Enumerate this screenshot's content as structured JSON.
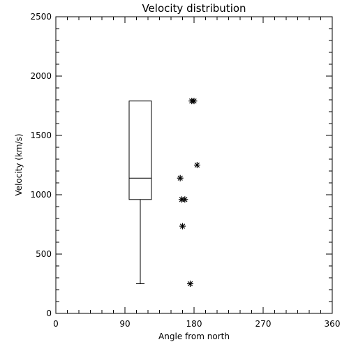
{
  "chart_data": {
    "type": "scatter",
    "title": "Velocity distribution",
    "xlabel": "Angle from north",
    "ylabel": "Velocity (km/s)",
    "xlim": [
      0,
      360
    ],
    "ylim": [
      0,
      2500
    ],
    "x_ticks": [
      0,
      90,
      180,
      270,
      360
    ],
    "y_ticks": [
      0,
      500,
      1000,
      1500,
      2000,
      2500
    ],
    "grid": false,
    "boxplot": {
      "x": 110,
      "min": 250,
      "q1": 960,
      "median": 1140,
      "q3": 1790,
      "max": 1790
    },
    "points": [
      {
        "x": 177,
        "y": 1790
      },
      {
        "x": 180,
        "y": 1790
      },
      {
        "x": 184,
        "y": 1250
      },
      {
        "x": 162,
        "y": 1140
      },
      {
        "x": 164,
        "y": 960
      },
      {
        "x": 168,
        "y": 960
      },
      {
        "x": 165,
        "y": 735
      },
      {
        "x": 175,
        "y": 250
      }
    ]
  }
}
